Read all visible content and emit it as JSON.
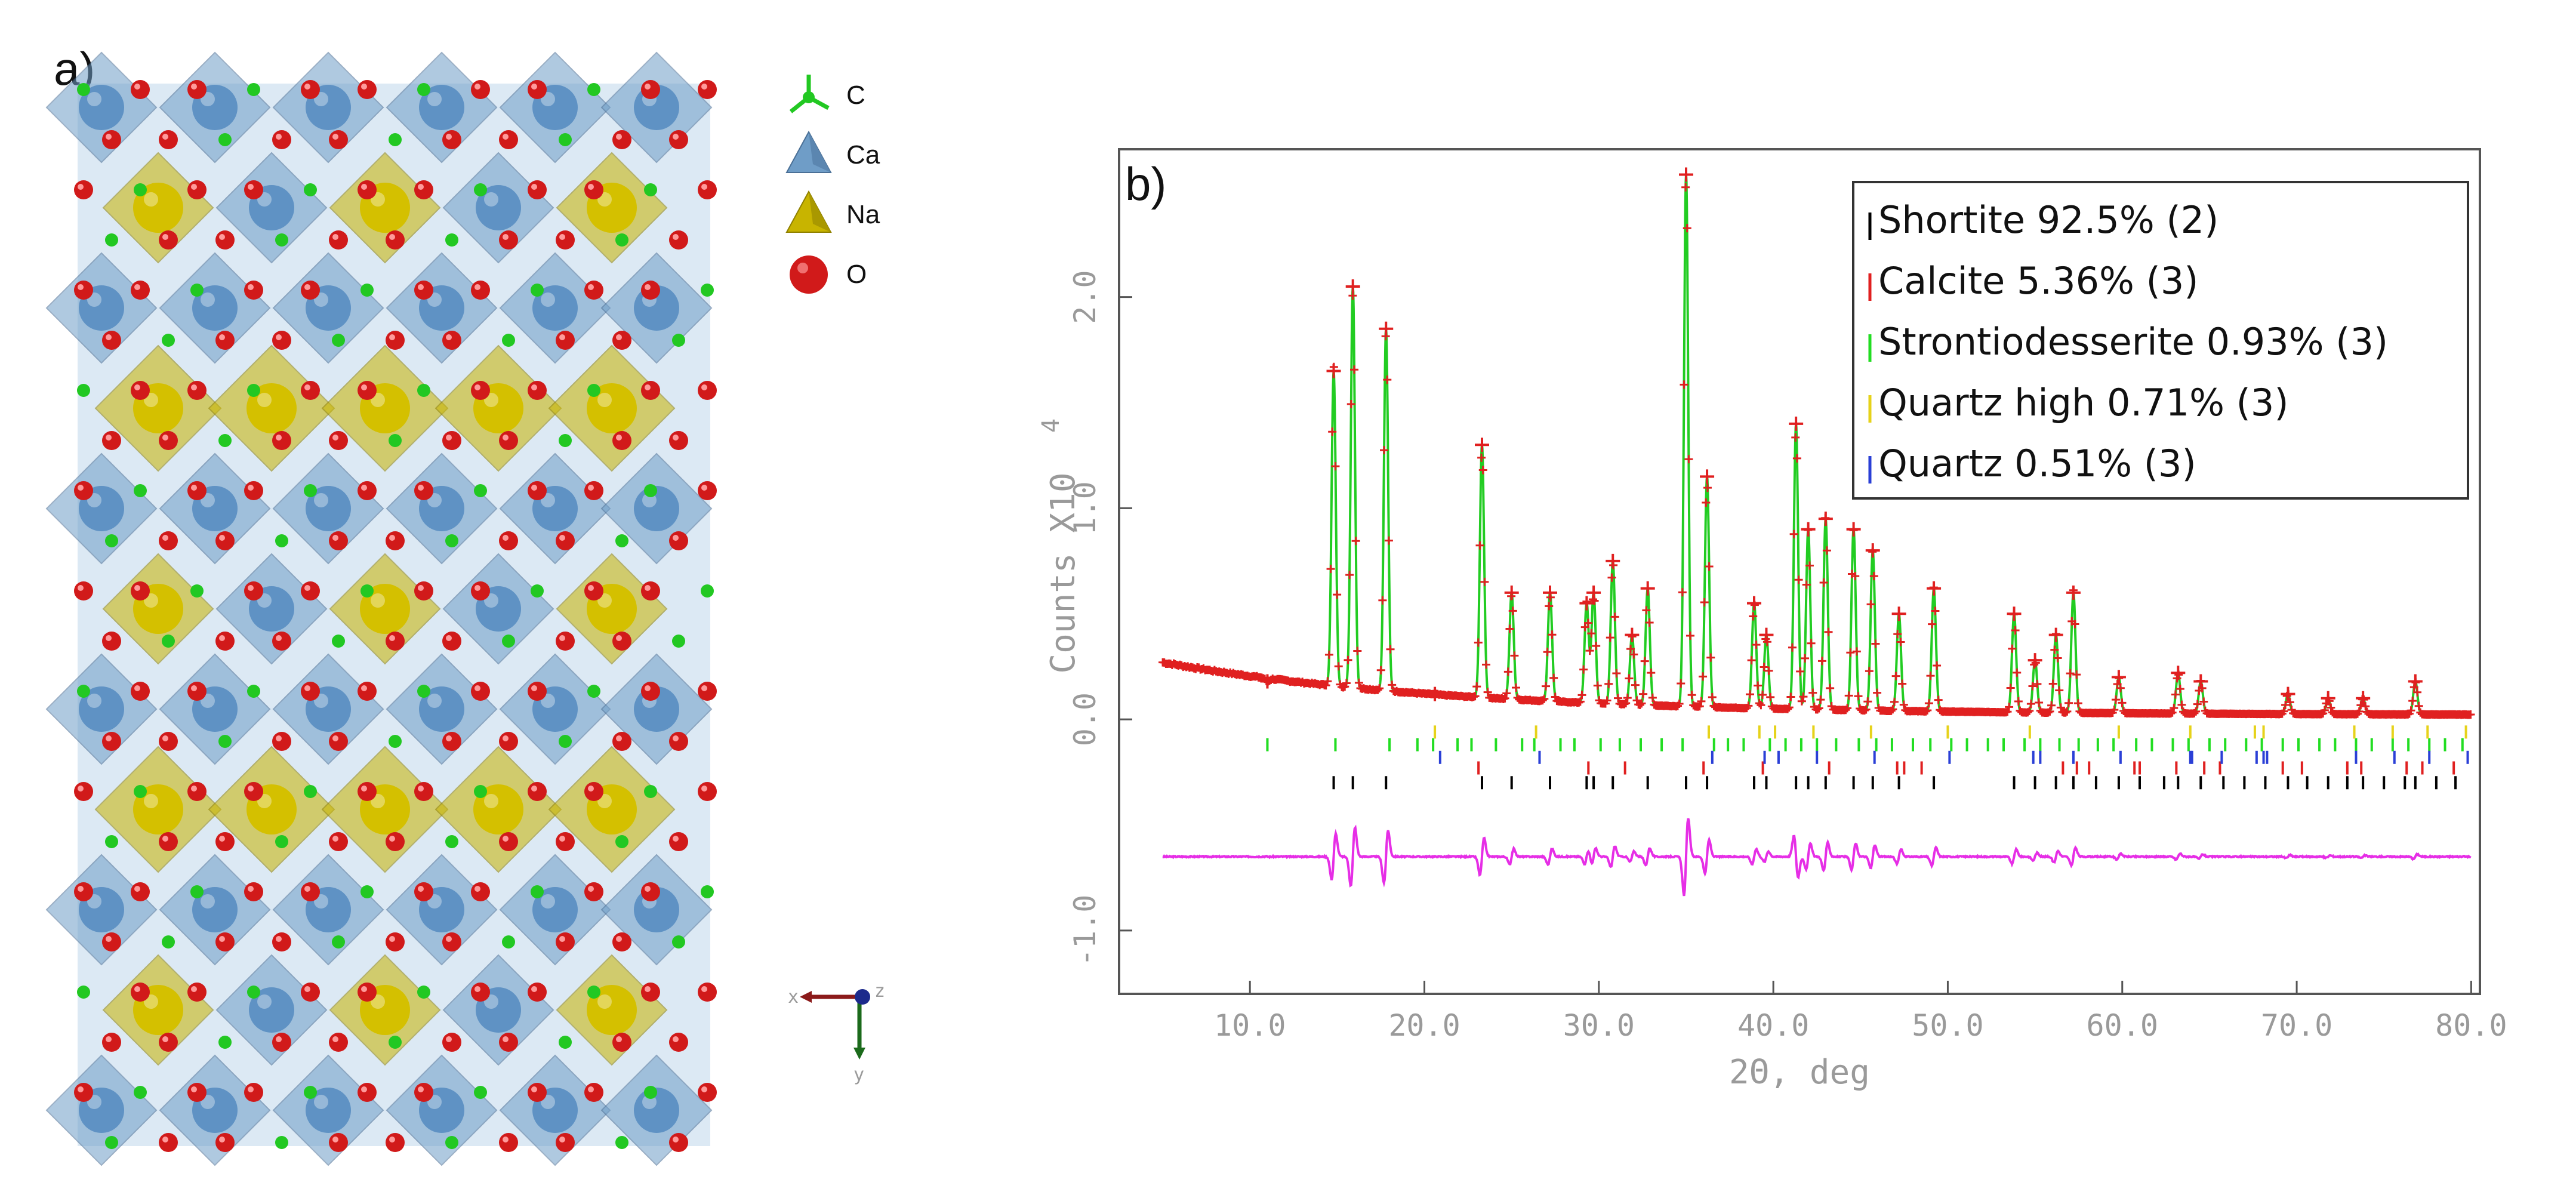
{
  "panel_a": {
    "label": "a)",
    "legend": [
      {
        "symbol": "C",
        "color": "#22c822",
        "icon": "carbon-tripod-icon"
      },
      {
        "symbol": "Ca",
        "color": "#6f9dc7",
        "icon": "calcium-polyhedron-icon"
      },
      {
        "symbol": "Na",
        "color": "#c8b400",
        "icon": "sodium-polyhedron-icon"
      },
      {
        "symbol": "O",
        "color": "#d11a1a",
        "icon": "oxygen-sphere-icon"
      }
    ],
    "axes": {
      "x": "x",
      "y": "y",
      "z": "z"
    }
  },
  "panel_b": {
    "label": "b)"
  },
  "chart_data": {
    "type": "line",
    "title": "",
    "xlabel": "2Θ, deg",
    "ylabel": "Counts X10",
    "ylabel_exponent": "4",
    "xlim": [
      2.5,
      80.5
    ],
    "ylim": [
      -1.3,
      2.7
    ],
    "xticks": [
      10.0,
      20.0,
      30.0,
      40.0,
      50.0,
      60.0,
      70.0,
      80.0
    ],
    "xtick_labels": [
      "10.0",
      "20.0",
      "30.0",
      "40.0",
      "50.0",
      "60.0",
      "70.0",
      "80.0"
    ],
    "yticks": [
      -1.0,
      0.0,
      1.0,
      2.0
    ],
    "ytick_labels": [
      "-1.0",
      "0.0",
      "1.0",
      "2.0"
    ],
    "background": {
      "start": 0.27,
      "end": 0.02
    },
    "peaks": [
      {
        "x": 11.0,
        "y": 0.18
      },
      {
        "x": 14.8,
        "y": 1.65
      },
      {
        "x": 15.9,
        "y": 2.05
      },
      {
        "x": 17.8,
        "y": 1.85
      },
      {
        "x": 20.6,
        "y": 0.12
      },
      {
        "x": 23.3,
        "y": 1.3
      },
      {
        "x": 25.0,
        "y": 0.6
      },
      {
        "x": 27.2,
        "y": 0.6
      },
      {
        "x": 29.3,
        "y": 0.55
      },
      {
        "x": 29.7,
        "y": 0.6
      },
      {
        "x": 30.8,
        "y": 0.75
      },
      {
        "x": 31.9,
        "y": 0.4
      },
      {
        "x": 32.8,
        "y": 0.62
      },
      {
        "x": 35.0,
        "y": 2.58
      },
      {
        "x": 36.2,
        "y": 1.15
      },
      {
        "x": 38.9,
        "y": 0.55
      },
      {
        "x": 39.6,
        "y": 0.4
      },
      {
        "x": 41.3,
        "y": 1.4
      },
      {
        "x": 42.0,
        "y": 0.9
      },
      {
        "x": 43.0,
        "y": 0.95
      },
      {
        "x": 44.6,
        "y": 0.9
      },
      {
        "x": 45.7,
        "y": 0.8
      },
      {
        "x": 47.2,
        "y": 0.5
      },
      {
        "x": 49.2,
        "y": 0.62
      },
      {
        "x": 53.8,
        "y": 0.5
      },
      {
        "x": 55.0,
        "y": 0.28
      },
      {
        "x": 56.2,
        "y": 0.4
      },
      {
        "x": 57.2,
        "y": 0.6
      },
      {
        "x": 59.8,
        "y": 0.2
      },
      {
        "x": 63.2,
        "y": 0.22
      },
      {
        "x": 64.5,
        "y": 0.18
      },
      {
        "x": 69.5,
        "y": 0.12
      },
      {
        "x": 71.8,
        "y": 0.1
      },
      {
        "x": 73.8,
        "y": 0.1
      },
      {
        "x": 76.8,
        "y": 0.18
      }
    ],
    "difference_baseline": -0.65,
    "series": [
      {
        "name": "Shortite",
        "label": "Shortite 92.5% (2)",
        "color": "#000000",
        "tick_row_y": -0.3,
        "ticks": [
          14.8,
          15.9,
          17.8,
          23.3,
          25.0,
          27.2,
          29.3,
          29.7,
          30.8,
          32.8,
          35.0,
          36.2,
          38.9,
          39.6,
          41.3,
          42.0,
          43.0,
          44.6,
          45.7,
          47.2,
          49.2,
          53.8,
          55.0,
          56.2,
          57.2,
          58.5,
          59.8,
          61.0,
          62.4,
          63.2,
          64.5,
          65.8,
          67.0,
          68.2,
          69.5,
          70.6,
          71.8,
          72.9,
          73.8,
          75.0,
          76.2,
          76.8,
          78.0,
          79.1
        ]
      },
      {
        "name": "Calcite",
        "label": "Calcite 5.36% (3)",
        "color": "#e02020",
        "tick_row_y": -0.23,
        "ticks": [
          23.1,
          29.4,
          31.5,
          36.0,
          39.4,
          43.2,
          47.1,
          47.5,
          48.5,
          56.6,
          57.4,
          58.1,
          60.7,
          61.0,
          63.1,
          64.7,
          65.6,
          69.2,
          70.3,
          72.9,
          73.7,
          76.3,
          77.2,
          79.0
        ]
      },
      {
        "name": "Strontiodesserite",
        "label": "Strontiodesserite 0.93% (3)",
        "color": "#22dd22",
        "tick_row_y": -0.12,
        "ticks": [
          11.0,
          14.9,
          18.0,
          19.6,
          20.5,
          21.9,
          22.7,
          24.1,
          25.6,
          26.3,
          27.8,
          28.6,
          30.1,
          31.2,
          32.4,
          33.6,
          34.8,
          36.6,
          37.4,
          38.3,
          39.8,
          40.7,
          41.6,
          42.5,
          43.6,
          44.9,
          45.9,
          46.8,
          48.0,
          49.0,
          50.2,
          51.1,
          52.3,
          53.2,
          54.4,
          55.3,
          56.4,
          57.5,
          58.6,
          59.5,
          60.8,
          61.7,
          62.9,
          63.8,
          65.0,
          65.9,
          67.1,
          68.0,
          69.2,
          70.1,
          71.3,
          72.2,
          73.4,
          74.3,
          75.5,
          76.4,
          77.6,
          78.5,
          79.5
        ]
      },
      {
        "name": "Quartz high",
        "label": "Quartz high 0.71% (3)",
        "color": "#e6d21a",
        "tick_row_y": -0.06,
        "ticks": [
          20.6,
          26.4,
          36.3,
          39.2,
          40.1,
          42.3,
          45.6,
          50.0,
          54.7,
          59.8,
          63.9,
          67.6,
          68.1,
          73.3,
          75.5,
          77.5,
          79.7
        ]
      },
      {
        "name": "Quartz",
        "label": "Quartz 0.51% (3)",
        "color": "#2a3fd6",
        "tick_row_y": -0.18,
        "ticks": [
          20.9,
          26.6,
          36.5,
          39.5,
          40.3,
          42.5,
          45.8,
          50.1,
          54.9,
          55.3,
          57.2,
          59.9,
          63.9,
          64.0,
          65.7,
          67.7,
          68.1,
          68.3,
          73.4,
          75.6,
          77.6,
          79.8
        ]
      }
    ]
  }
}
